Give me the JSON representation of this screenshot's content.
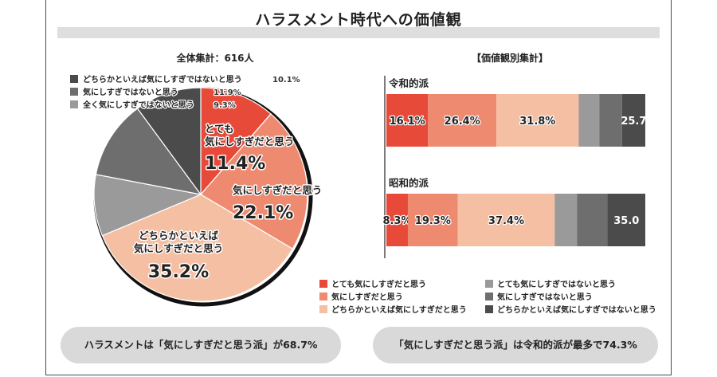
{
  "title": "ハラスメント時代への価値観",
  "pie_section": {
    "heading": "全体集計：616人"
  },
  "bar_section": {
    "heading": "【価値観別集計】"
  },
  "colors": {
    "very_concerned": "#e84a3a",
    "concerned": "#ee8a70",
    "somewhat_concerned": "#f5bfa3",
    "very_not_concerned": "#9a9a9a",
    "not_concerned": "#6e6e6e",
    "somewhat_not_concerned": "#4b4b4b"
  },
  "chart_data": [
    {
      "type": "pie",
      "title": "全体集計：616人",
      "slices": [
        {
          "key": "very_concerned",
          "label": "とても\n気にしすぎだと思う",
          "value": 11.4,
          "value_text": "11.4%"
        },
        {
          "key": "concerned",
          "label": "気にしすぎだと思う",
          "value": 22.1,
          "value_text": "22.1%"
        },
        {
          "key": "somewhat_concerned",
          "label": "どちらかといえば\n気にしすぎだと思う",
          "value": 35.2,
          "value_text": "35.2%"
        },
        {
          "key": "very_not_concerned",
          "label": "全く気にしすぎではないと思う",
          "value": 9.3,
          "value_text": "9.3%"
        },
        {
          "key": "not_concerned",
          "label": "気にしすぎではないと思う",
          "value": 11.9,
          "value_text": "11.9%"
        },
        {
          "key": "somewhat_not_concerned",
          "label": "どちらかといえば気にしすぎではないと思う",
          "value": 10.1,
          "value_text": "10.1%"
        }
      ],
      "legend": [
        {
          "key": "somewhat_not_concerned",
          "label": "どちらかといえば気にしすぎではないと思う",
          "value_text": "10.1%"
        },
        {
          "key": "not_concerned",
          "label": "気にしすぎではないと思う",
          "value_text": "11.9%"
        },
        {
          "key": "very_not_concerned",
          "label": "全く気にしすぎではないと思う",
          "value_text": "9.3%"
        }
      ]
    },
    {
      "type": "bar",
      "orientation": "horizontal",
      "stacked": true,
      "title": "【価値観別集計】",
      "categories": [
        "令和的派",
        "昭和的派"
      ],
      "series": [
        {
          "key": "very_concerned",
          "name": "とても気にしすぎだと思う",
          "values": [
            16.1,
            8.3
          ],
          "labels": [
            "16.1%",
            "8.3%"
          ]
        },
        {
          "key": "concerned",
          "name": "気にしすぎだと思う",
          "values": [
            26.4,
            19.3
          ],
          "labels": [
            "26.4%",
            "19.3%"
          ]
        },
        {
          "key": "somewhat_concerned",
          "name": "どちらかといえば気にしすぎだと思う",
          "values": [
            31.8,
            37.4
          ],
          "labels": [
            "31.8%",
            "37.4%"
          ]
        },
        {
          "key": "very_not_concerned",
          "name": "とても気にしすぎではないと思う",
          "values": [
            8.0,
            8.6
          ],
          "labels": [
            "",
            ""
          ]
        },
        {
          "key": "not_concerned",
          "name": "気にしすぎではないと思う",
          "values": [
            8.7,
            11.8
          ],
          "labels": [
            "",
            ""
          ]
        },
        {
          "key": "somewhat_not_concerned",
          "name": "どちらかといえば気にしすぎではないと思う",
          "values": [
            9.0,
            14.6
          ],
          "labels": [
            "",
            ""
          ]
        }
      ],
      "group_labels": [
        "25.7",
        "35.0"
      ],
      "legend": [
        {
          "key": "very_concerned",
          "label": "とても気にしすぎだと思う"
        },
        {
          "key": "concerned",
          "label": "気にしすぎだと思う"
        },
        {
          "key": "somewhat_concerned",
          "label": "どちらかといえば気にしすぎだと思う"
        },
        {
          "key": "very_not_concerned",
          "label": "とても気にしすぎではないと思う"
        },
        {
          "key": "not_concerned",
          "label": "気にしすぎではないと思う"
        },
        {
          "key": "somewhat_not_concerned",
          "label": "どちらかといえば気にしすぎではないと思う"
        }
      ],
      "xlim": [
        0,
        100
      ]
    }
  ],
  "summary": {
    "left": "ハラスメントは「気にしすぎだと思う派」が68.7%",
    "right": "「気にしすぎだと思う派」は令和的派が最多で74.3%"
  }
}
